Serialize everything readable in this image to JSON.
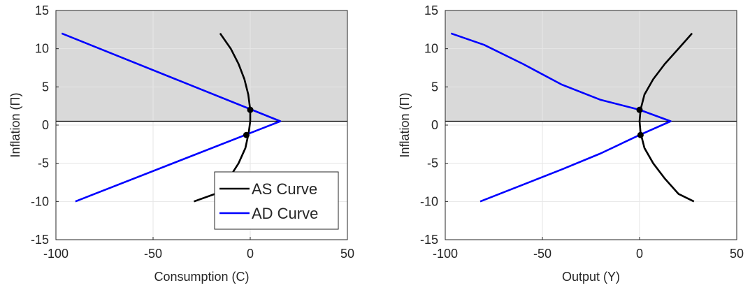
{
  "figure": {
    "colors": {
      "as_curve": "#000000",
      "ad_curve": "#0000ff",
      "shaded_region": "#d9d9d9",
      "grid": "#e6e6e6",
      "axes": "#262626"
    }
  },
  "chart_data": [
    {
      "type": "line",
      "xlabel": "Consumption (C)",
      "ylabel": "Inflation (Π)",
      "xlim": [
        -100,
        50
      ],
      "ylim": [
        -15,
        15
      ],
      "xticks": [
        -100,
        -50,
        0,
        50
      ],
      "xtick_labels": [
        "-100",
        "-50",
        "0",
        "50"
      ],
      "yticks": [
        -15,
        -10,
        -5,
        0,
        5,
        10,
        15
      ],
      "ytick_labels": [
        "-15",
        "-10",
        "-5",
        "0",
        "5",
        "10",
        "15"
      ],
      "grid": true,
      "shaded_band": {
        "y_from": 0.5,
        "y_to": 15
      },
      "legend": {
        "placement": "bottom-right",
        "entries": [
          {
            "label": "AS Curve",
            "series": 0
          },
          {
            "label": "AD Curve",
            "series": 1
          }
        ]
      },
      "series": [
        {
          "name": "AS Curve",
          "color": "#000000",
          "x": [
            -15.5,
            -10,
            -6,
            -3,
            -1,
            0,
            0,
            -0.8,
            -2.5,
            -6,
            -11,
            -18,
            -29
          ],
          "y": [
            12,
            10,
            8,
            6,
            4,
            2,
            0.5,
            -1,
            -3,
            -5,
            -7,
            -9,
            -10
          ]
        },
        {
          "name": "AD Curve",
          "color": "#0000ff",
          "x": [
            -97,
            15.5,
            -90
          ],
          "y": [
            12,
            0.5,
            -10
          ]
        }
      ],
      "points": [
        {
          "x": 0,
          "y": 2
        },
        {
          "x": -2,
          "y": -1.3
        }
      ]
    },
    {
      "type": "line",
      "xlabel": "Output (Y)",
      "ylabel": "Inflation (Π)",
      "xlim": [
        -100,
        50
      ],
      "ylim": [
        -15,
        15
      ],
      "xticks": [
        -100,
        -50,
        0,
        50
      ],
      "xtick_labels": [
        "-100",
        "-50",
        "0",
        "50"
      ],
      "yticks": [
        -15,
        -10,
        -5,
        0,
        5,
        10,
        15
      ],
      "ytick_labels": [
        "-15",
        "-10",
        "-5",
        "0",
        "5",
        "10",
        "15"
      ],
      "grid": true,
      "shaded_band": {
        "y_from": 0.5,
        "y_to": 15
      },
      "series": [
        {
          "name": "AS Curve",
          "color": "#000000",
          "x": [
            27,
            20,
            13,
            7,
            2.5,
            0.5,
            0,
            0.5,
            2.5,
            7,
            13,
            20,
            28
          ],
          "y": [
            12,
            10,
            8,
            6,
            4,
            2,
            0.5,
            -1,
            -3,
            -5,
            -7,
            -9,
            -10
          ]
        },
        {
          "name": "AD Curve",
          "color": "#0000ff",
          "x": [
            -97,
            -80,
            -60,
            -40,
            -20,
            0,
            16,
            0,
            -20,
            -40,
            -60,
            -82
          ],
          "y": [
            12,
            10.5,
            8,
            5.3,
            3.3,
            2,
            0.5,
            -1.3,
            -3.7,
            -5.8,
            -7.8,
            -10
          ]
        }
      ],
      "points": [
        {
          "x": 0,
          "y": 2
        },
        {
          "x": 0.5,
          "y": -1.3
        }
      ]
    }
  ]
}
